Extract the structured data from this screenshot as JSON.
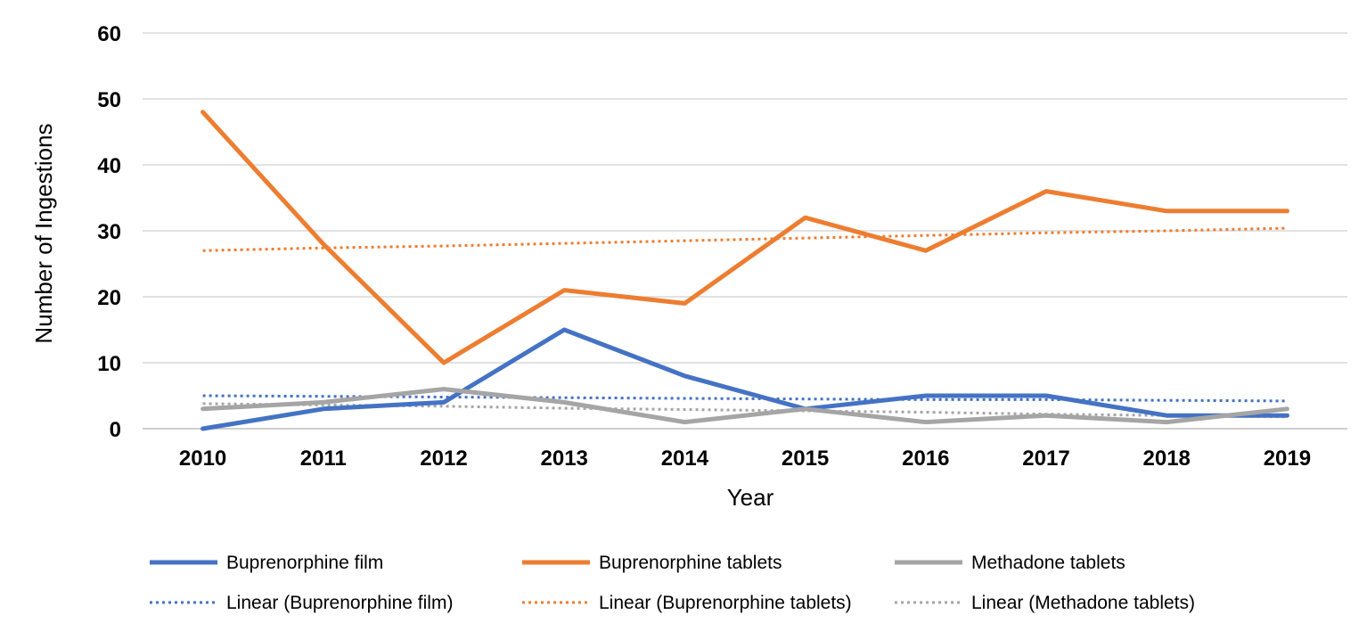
{
  "chart_data": {
    "type": "line",
    "title": "",
    "xlabel": "Year",
    "ylabel": "Number of Ingestions",
    "ylim": [
      0,
      60
    ],
    "yticks": [
      "0",
      "10",
      "20",
      "30",
      "40",
      "50",
      "60"
    ],
    "categories": [
      "2010",
      "2011",
      "2012",
      "2013",
      "2014",
      "2015",
      "2016",
      "2017",
      "2018",
      "2019"
    ],
    "grid": true,
    "legend_position": "bottom",
    "series": [
      {
        "name": "Buprenorphine film",
        "values": [
          0,
          3,
          4,
          15,
          8,
          3,
          5,
          5,
          2,
          2
        ],
        "color": "#4472C4",
        "style": "solid"
      },
      {
        "name": "Buprenorphine tablets",
        "values": [
          48,
          28,
          10,
          21,
          19,
          32,
          27,
          36,
          33,
          33
        ],
        "color": "#ED7D31",
        "style": "solid"
      },
      {
        "name": "Methadone tablets",
        "values": [
          3,
          4,
          6,
          4,
          1,
          3,
          1,
          2,
          1,
          3
        ],
        "color": "#A5A5A5",
        "style": "solid"
      },
      {
        "name": "Linear (Buprenorphine film)",
        "values": [
          5.0,
          4.9,
          4.8,
          4.7,
          4.6,
          4.5,
          4.4,
          4.4,
          4.3,
          4.2
        ],
        "color": "#4472C4",
        "style": "dotted"
      },
      {
        "name": "Linear (Buprenorphine tablets)",
        "values": [
          27.0,
          27.4,
          27.7,
          28.1,
          28.5,
          28.9,
          29.3,
          29.7,
          30.0,
          30.4
        ],
        "color": "#ED7D31",
        "style": "dotted"
      },
      {
        "name": "Linear (Methadone tablets)",
        "values": [
          3.8,
          3.6,
          3.4,
          3.1,
          2.9,
          2.7,
          2.5,
          2.2,
          2.0,
          1.8
        ],
        "color": "#A5A5A5",
        "style": "dotted"
      }
    ]
  }
}
